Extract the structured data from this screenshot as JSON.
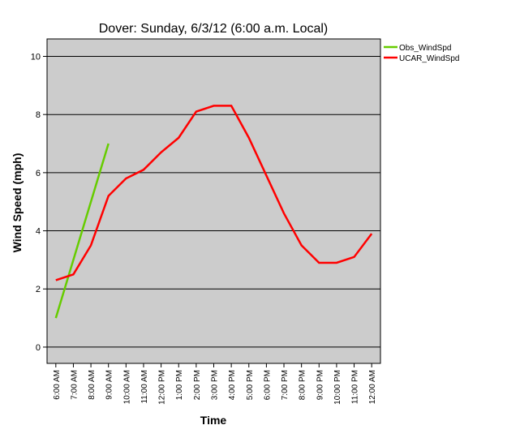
{
  "chart_data": {
    "type": "line",
    "title": "Dover: Sunday, 6/3/12 (6:00 a.m. Local)",
    "x_label": "Time",
    "y_label": "Wind Speed (mph)",
    "categories": [
      "6:00 AM",
      "7:00 AM",
      "8:00 AM",
      "9:00 AM",
      "10:00 AM",
      "11:00 AM",
      "12:00 PM",
      "1:00 PM",
      "2:00 PM",
      "3:00 PM",
      "4:00 PM",
      "5:00 PM",
      "6:00 PM",
      "7:00 PM",
      "8:00 PM",
      "9:00 PM",
      "10:00 PM",
      "11:00 PM",
      "12:00 AM"
    ],
    "series": [
      {
        "name": "Obs_WindSpd",
        "color": "#66cc00",
        "values": [
          1.0,
          3.0,
          5.0,
          7.0,
          null,
          null,
          null,
          null,
          null,
          null,
          null,
          null,
          null,
          null,
          null,
          null,
          null,
          null,
          null
        ]
      },
      {
        "name": "UCAR_WindSpd",
        "color": "#ff0000",
        "values": [
          2.3,
          2.5,
          3.5,
          5.2,
          5.8,
          6.1,
          6.7,
          7.2,
          8.1,
          8.3,
          8.3,
          7.2,
          5.9,
          4.6,
          3.5,
          2.9,
          2.9,
          3.1,
          3.9
        ]
      }
    ],
    "ylim": [
      -0.56,
      10.6
    ],
    "yticks": [
      0,
      2,
      4,
      6,
      8,
      10
    ],
    "grid": true,
    "legend": "right"
  }
}
